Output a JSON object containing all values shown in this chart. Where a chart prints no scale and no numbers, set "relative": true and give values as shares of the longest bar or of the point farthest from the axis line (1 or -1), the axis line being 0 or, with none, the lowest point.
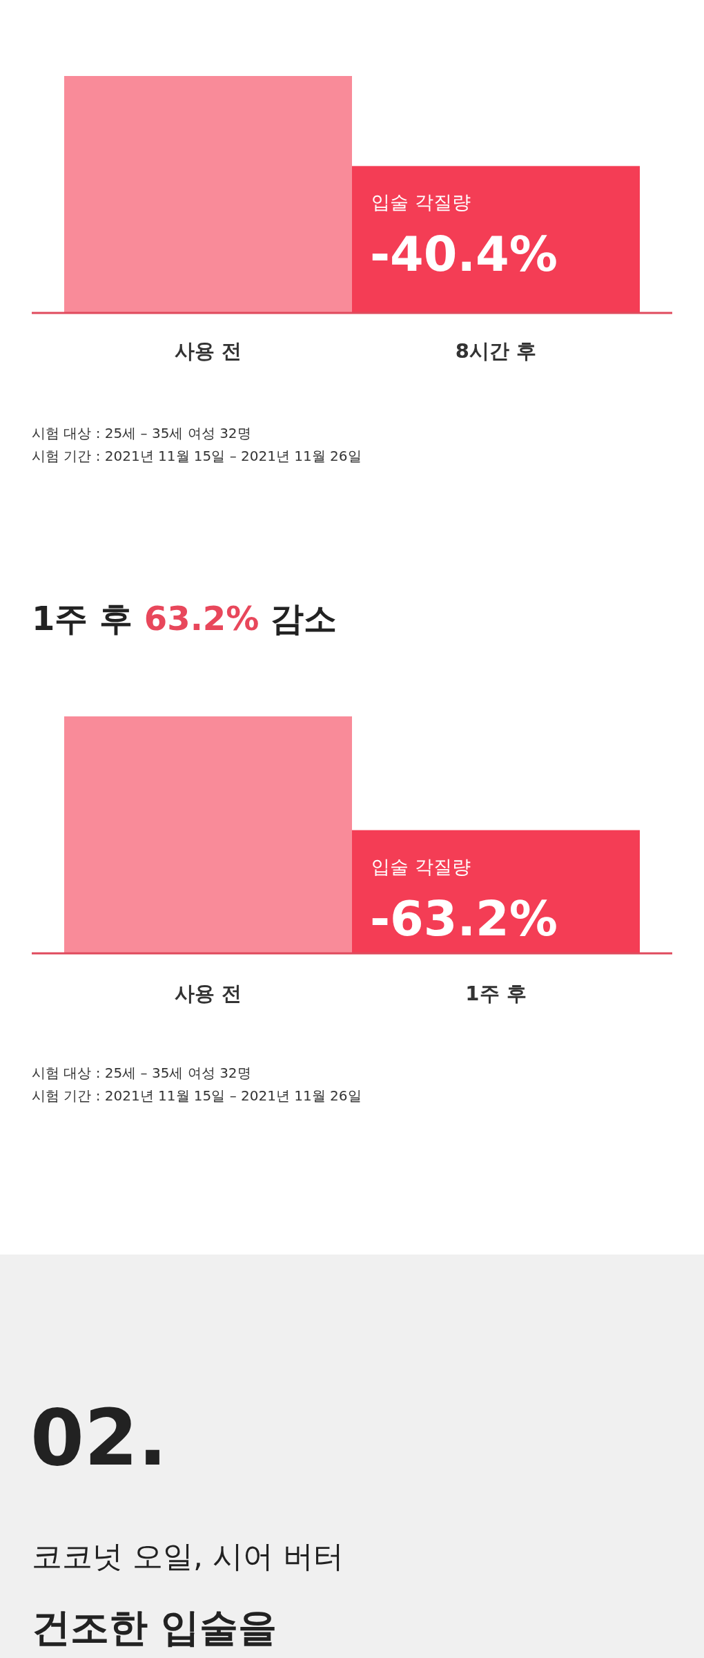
{
  "chart_data": [
    {
      "type": "bar",
      "relative": true,
      "categories": [
        "사용 전",
        "8시간 후"
      ],
      "values": [
        1,
        0.62
      ],
      "colors": [
        "#f98b99",
        "#f43d55"
      ],
      "annotations": [
        "입술 각질량",
        "-40.4%",
        "시험 대상 : 25세 – 35세 여성 32명",
        "시험 기간 : 2021년 11월 15일 – 2021년 11월 26일"
      ]
    },
    {
      "type": "bar",
      "relative": true,
      "title": "1주 후 63.2% 감소",
      "categories": [
        "사용 전",
        "1주 후"
      ],
      "values": [
        1,
        0.52
      ],
      "colors": [
        "#f98b99",
        "#f43d55"
      ],
      "annotations": [
        "입술 각질량",
        "-63.2%",
        "시험 대상 : 25세 – 35세 여성 32명",
        "시험 기간 : 2021년 11월 15일 – 2021년 11월 26일"
      ]
    },
    {
      "type": "other",
      "title": "02.",
      "subtitle": "코코넛 오일, 시어 버터",
      "annotations": [
        "건조한 입술을"
      ]
    }
  ]
}
